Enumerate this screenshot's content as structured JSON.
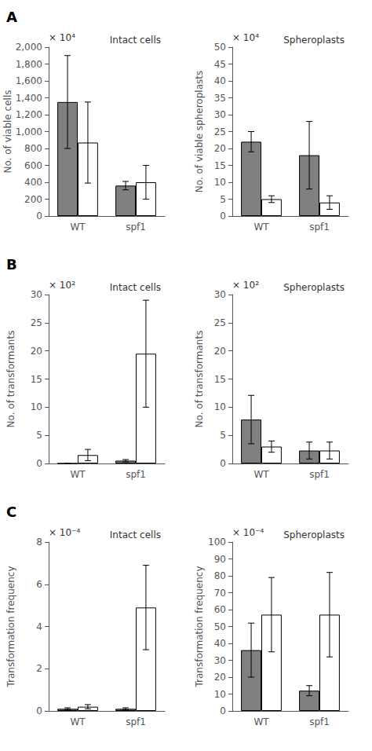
{
  "chart_data": [
    {
      "type": "bar",
      "title": "Intact cells",
      "ylabel": "No. of viable cells",
      "annotations": [
        "A",
        "× 10⁴"
      ],
      "categories": [
        "WT",
        "spf1"
      ],
      "series": [
        {
          "color": "#808080",
          "values": [
            1350,
            360
          ],
          "errors": [
            550,
            50
          ]
        },
        {
          "color": "#ffffff",
          "values": [
            870,
            400
          ],
          "errors": [
            480,
            200
          ]
        }
      ],
      "ylim": [
        0,
        2000
      ],
      "yticks": [
        0,
        200,
        400,
        600,
        800,
        1000,
        1200,
        1400,
        1600,
        1800,
        2000
      ],
      "grid": false
    },
    {
      "type": "bar",
      "title": "Spheroplasts",
      "ylabel": "No. of viable spheroplasts",
      "annotations": [
        "× 10⁴"
      ],
      "categories": [
        "WT",
        "spf1"
      ],
      "series": [
        {
          "color": "#808080",
          "values": [
            22,
            18
          ],
          "errors": [
            3,
            10
          ]
        },
        {
          "color": "#ffffff",
          "values": [
            5,
            4
          ],
          "errors": [
            1,
            2
          ]
        }
      ],
      "ylim": [
        0,
        50
      ],
      "yticks": [
        0,
        5,
        10,
        15,
        20,
        25,
        30,
        35,
        40,
        45,
        50
      ],
      "grid": false
    },
    {
      "type": "bar",
      "title": "Intact cells",
      "ylabel": "No. of transformants",
      "annotations": [
        "B",
        "× 10²"
      ],
      "categories": [
        "WT",
        "spf1"
      ],
      "series": [
        {
          "color": "#808080",
          "values": [
            0,
            0.5
          ],
          "errors": [
            0,
            0.2
          ]
        },
        {
          "color": "#ffffff",
          "values": [
            1.5,
            19.5
          ],
          "errors": [
            1.0,
            9.5
          ]
        }
      ],
      "ylim": [
        0,
        30
      ],
      "yticks": [
        0,
        5,
        10,
        15,
        20,
        25,
        30
      ],
      "grid": false
    },
    {
      "type": "bar",
      "title": "Spheroplasts",
      "ylabel": "No. of transformants",
      "annotations": [
        "× 10²"
      ],
      "categories": [
        "WT",
        "spf1"
      ],
      "series": [
        {
          "color": "#808080",
          "values": [
            7.8,
            2.3
          ],
          "errors": [
            4.3,
            1.5
          ]
        },
        {
          "color": "#ffffff",
          "values": [
            3.0,
            2.3
          ],
          "errors": [
            1.0,
            1.5
          ]
        }
      ],
      "ylim": [
        0,
        30
      ],
      "yticks": [
        0,
        5,
        10,
        15,
        20,
        25,
        30
      ],
      "grid": false
    },
    {
      "type": "bar",
      "title": "Intact cells",
      "ylabel": "Transformation frequency",
      "annotations": [
        "C",
        "× 10⁻⁴"
      ],
      "categories": [
        "WT",
        "spf1"
      ],
      "series": [
        {
          "color": "#808080",
          "values": [
            0.1,
            0.1
          ],
          "errors": [
            0.05,
            0.05
          ]
        },
        {
          "color": "#ffffff",
          "values": [
            0.2,
            4.9
          ],
          "errors": [
            0.1,
            2.0
          ]
        }
      ],
      "ylim": [
        0,
        8
      ],
      "yticks": [
        0,
        2,
        4,
        6,
        8
      ],
      "grid": false
    },
    {
      "type": "bar",
      "title": "Spheroplasts",
      "ylabel": "Transformation frequency",
      "annotations": [
        "× 10⁻⁴"
      ],
      "categories": [
        "WT",
        "spf1"
      ],
      "series": [
        {
          "color": "#808080",
          "values": [
            36,
            12
          ],
          "errors": [
            16,
            3
          ]
        },
        {
          "color": "#ffffff",
          "values": [
            57,
            57
          ],
          "errors": [
            22,
            25
          ]
        }
      ],
      "ylim": [
        0,
        100
      ],
      "yticks": [
        0,
        10,
        20,
        30,
        40,
        50,
        60,
        70,
        80,
        90,
        100
      ],
      "grid": false
    }
  ]
}
